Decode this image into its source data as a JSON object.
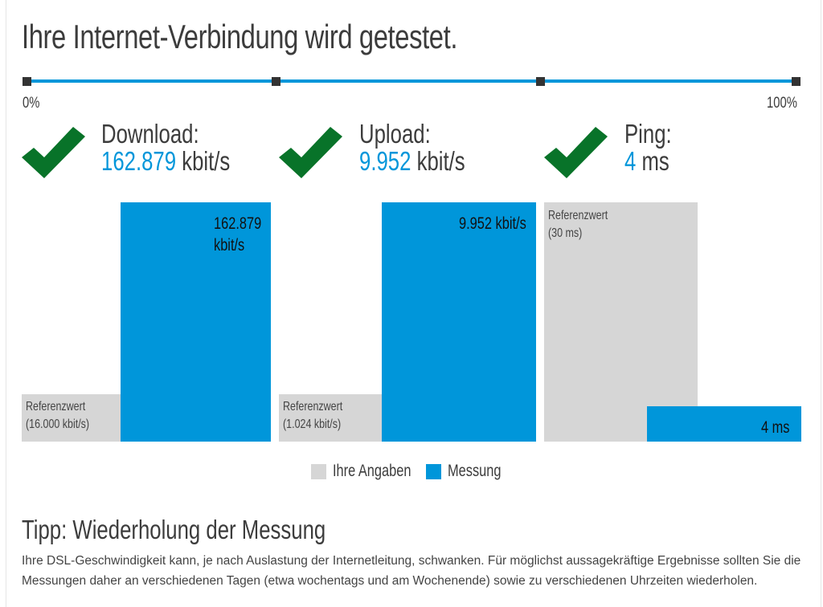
{
  "title": "Ihre Internet-Verbindung wird getestet.",
  "progress": {
    "start_label": "0%",
    "end_label": "100%",
    "value_percent": 100,
    "color": "#0096da"
  },
  "metrics": [
    {
      "label": "Download:",
      "value": "162.879",
      "unit": "kbit/s",
      "status": "check-icon"
    },
    {
      "label": "Upload:",
      "value": "9.952",
      "unit": "kbit/s",
      "status": "check-icon"
    },
    {
      "label": "Ping:",
      "value": "4",
      "unit": "ms",
      "status": "check-icon"
    }
  ],
  "bars": {
    "download": {
      "ref_label": "Referenzwert",
      "ref_value": "(16.000 kbit/s)",
      "measured_line1": "162.879",
      "measured_line2": "kbit/s"
    },
    "upload": {
      "ref_label": "Referenzwert",
      "ref_value": "(1.024 kbit/s)",
      "measured": "9.952 kbit/s"
    },
    "ping": {
      "ref_label": "Referenzwert",
      "ref_value": "(30 ms)",
      "measured": "4 ms"
    }
  },
  "legend": {
    "reference": "Ihre Angaben",
    "measured": "Messung",
    "reference_color": "#d6d6d6",
    "measured_color": "#0096da"
  },
  "tip": {
    "heading": "Tipp: Wiederholung der Messung",
    "text": "Ihre DSL-Geschwindigkeit kann, je nach Auslastung der Internetleitung, schwanken. Für möglichst aussagekräftige Ergebnisse sollten Sie die Messungen daher an verschiedenen Tagen (etwa wochentags und am Wochenende) sowie zu verschiedenen Uhrzeiten wiederholen."
  },
  "colors": {
    "check": "#087329",
    "accent": "#0096da"
  }
}
